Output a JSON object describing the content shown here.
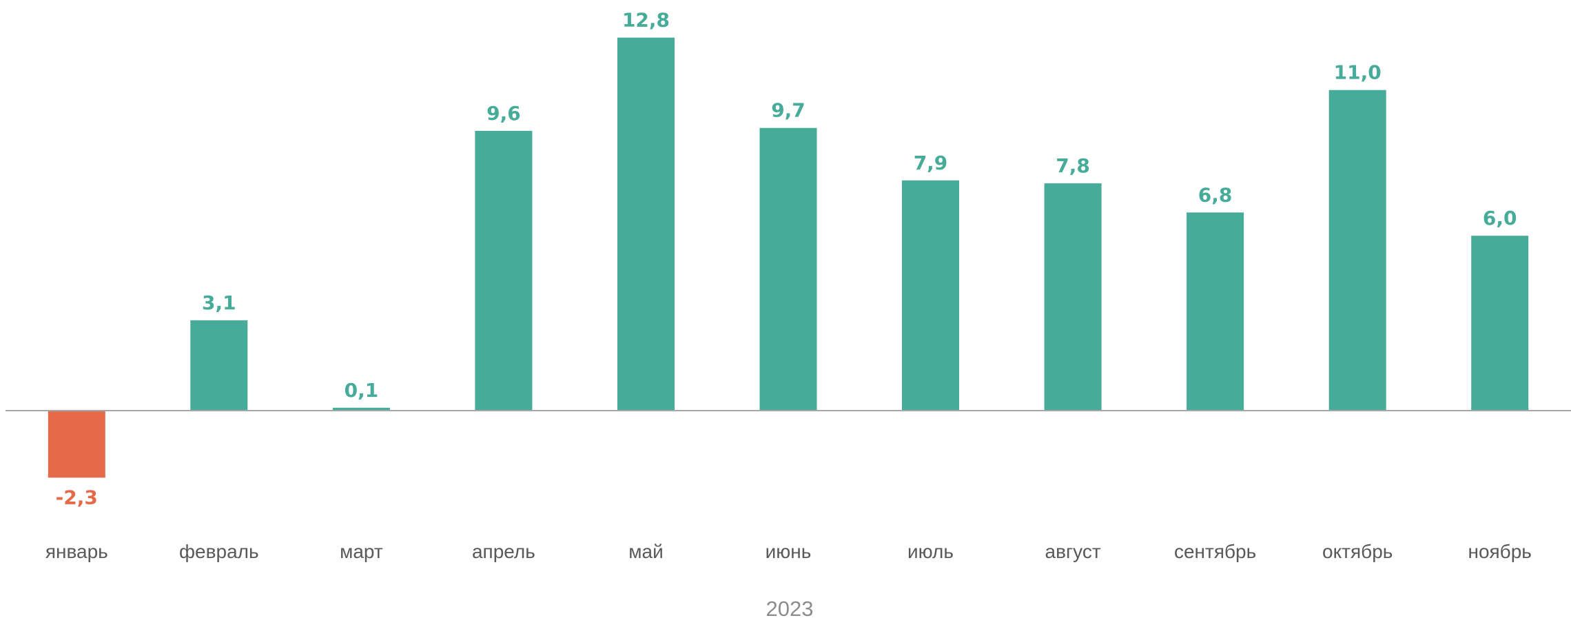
{
  "chart_data": {
    "type": "bar",
    "categories": [
      "январь",
      "февраль",
      "март",
      "апрель",
      "май",
      "июнь",
      "июль",
      "август",
      "сентябрь",
      "октябрь",
      "ноябрь"
    ],
    "values": [
      -2.3,
      3.1,
      0.1,
      9.6,
      12.8,
      9.7,
      7.9,
      7.8,
      6.8,
      11.0,
      6.0
    ],
    "value_labels": [
      "-2,3",
      "3,1",
      "0,1",
      "9,6",
      "12,8",
      "9,7",
      "7,9",
      "7,8",
      "6,8",
      "11,0",
      "6,0"
    ],
    "xlabel": "2023",
    "ylabel": "",
    "grid": false,
    "legend": "none",
    "colors": {
      "positive": "#46ab98",
      "negative": "#e46a49",
      "axis": "#a6a6a6",
      "category_text": "#595959",
      "year_text": "#8c8c8c"
    }
  }
}
